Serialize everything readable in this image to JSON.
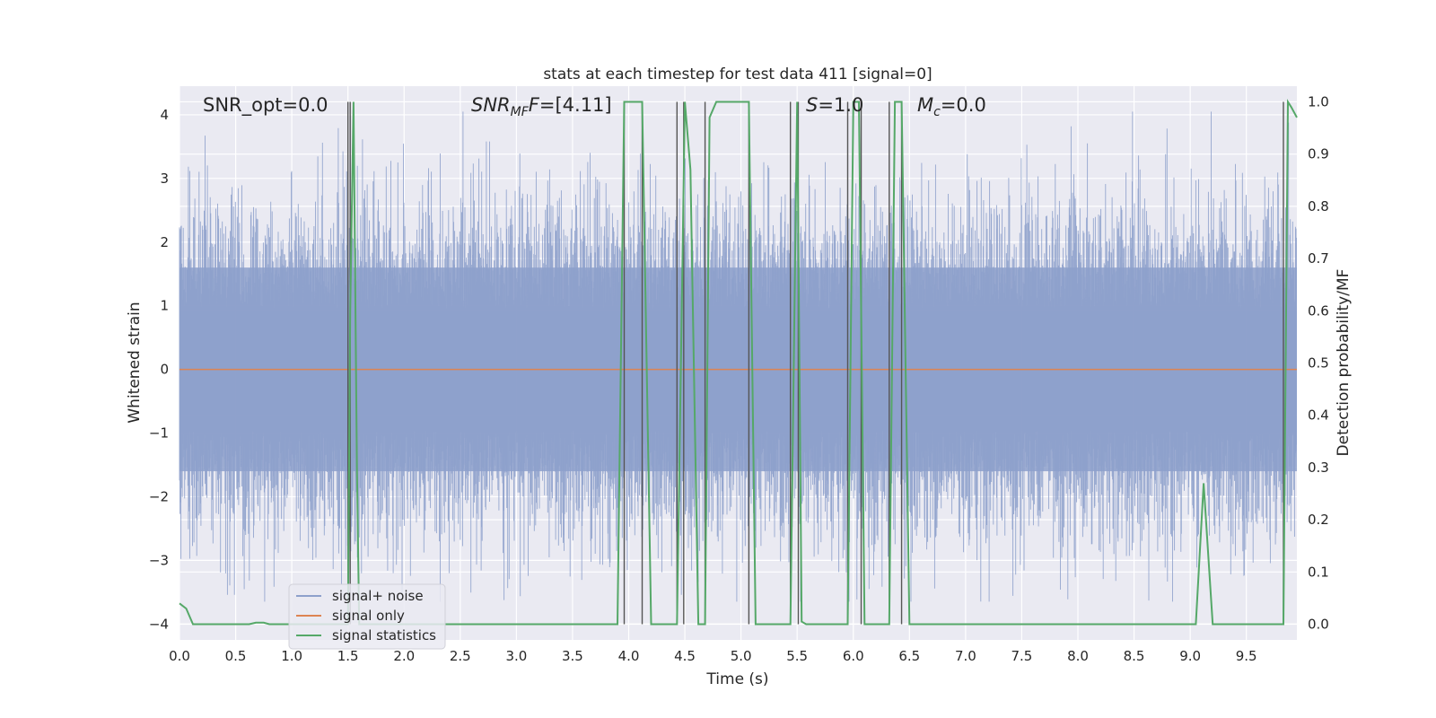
{
  "chart_data": {
    "type": "line",
    "title": "stats at each timestep for test data 411 [signal=0]",
    "xlabel": "Time (s)",
    "ylabel": "Whitened strain",
    "y2label": "Detection probability/MF",
    "xlim": [
      0,
      9.95
    ],
    "ylim": [
      -4.25,
      4.45
    ],
    "y2lim": [
      -0.03,
      1.03
    ],
    "x_ticks": [
      0.0,
      0.5,
      1.0,
      1.5,
      2.0,
      2.5,
      3.0,
      3.5,
      4.0,
      4.5,
      5.0,
      5.5,
      6.0,
      6.5,
      7.0,
      7.5,
      8.0,
      8.5,
      9.0,
      9.5
    ],
    "x_tick_labels": [
      "0.0",
      "0.5",
      "1.0",
      "1.5",
      "2.0",
      "2.5",
      "3.0",
      "3.5",
      "4.0",
      "4.5",
      "5.0",
      "5.5",
      "6.0",
      "6.5",
      "7.0",
      "7.5",
      "8.0",
      "8.5",
      "9.0",
      "9.5"
    ],
    "y_ticks": [
      4,
      3,
      2,
      1,
      0,
      -1,
      -2,
      -3,
      -4
    ],
    "y_tick_labels": [
      "4",
      "3",
      "2",
      "1",
      "0",
      "−1",
      "−2",
      "−3",
      "−4"
    ],
    "y2_ticks": [
      1.0,
      0.9,
      0.8,
      0.7,
      0.6,
      0.5,
      0.4,
      0.3,
      0.2,
      0.1,
      0.0
    ],
    "y2_tick_labels": [
      "1.0",
      "0.9",
      "0.8",
      "0.7",
      "0.6",
      "0.5",
      "0.4",
      "0.3",
      "0.2",
      "0.1",
      "0.0"
    ],
    "grid": true,
    "legend_position": "lower-left",
    "annotations": {
      "snr_opt": "SNR_opt=0.0",
      "snr_mf_base": "SNR",
      "snr_mf_sub": "MF",
      "snr_mf_value": "=[4.11]",
      "s_label": "S",
      "s_value": "=1.0",
      "mc_label": "M",
      "mc_sub": "c",
      "mc_value": "=0.0"
    },
    "noise_envelope": {
      "core_amplitude": 1.6,
      "peak_amplitude": 4.05
    },
    "detection_lines_x": [
      1.5,
      1.52,
      3.96,
      4.12,
      4.43,
      4.49,
      4.68,
      5.07,
      5.44,
      5.51,
      5.95,
      6.07,
      6.32,
      6.43,
      9.83
    ],
    "series": [
      {
        "name": "signal+ noise",
        "color": "#8da0cb",
        "axis": "left",
        "values_note_free": true
      },
      {
        "name": "signal only",
        "color": "#dd8452",
        "axis": "left",
        "x": [
          0.0,
          9.95
        ],
        "y": [
          0.0,
          0.0
        ]
      },
      {
        "name": "signal statistics",
        "color": "#55a868",
        "axis": "right",
        "x": [
          0.0,
          0.06,
          0.12,
          0.2,
          0.5,
          0.62,
          0.68,
          0.75,
          0.8,
          1.5,
          1.52,
          1.55,
          1.58,
          1.6,
          3.9,
          3.96,
          4.0,
          4.12,
          4.2,
          4.28,
          4.43,
          4.5,
          4.55,
          4.62,
          4.68,
          4.72,
          4.78,
          4.95,
          5.07,
          5.13,
          5.44,
          5.5,
          5.54,
          5.58,
          5.65,
          5.95,
          6.0,
          6.05,
          6.1,
          6.32,
          6.37,
          6.43,
          6.5,
          9.05,
          9.12,
          9.2,
          9.83,
          9.87,
          9.9,
          9.95
        ],
        "y": [
          0.04,
          0.03,
          0.0,
          0.0,
          0.0,
          0.0,
          0.003,
          0.003,
          0.0,
          0.0,
          0.6,
          1.0,
          0.3,
          0.0,
          0.0,
          1.0,
          1.0,
          1.0,
          0.0,
          0.0,
          0.0,
          1.0,
          0.87,
          0.0,
          0.0,
          0.97,
          1.0,
          1.0,
          1.0,
          0.0,
          0.0,
          1.0,
          0.005,
          0.0,
          0.0,
          0.0,
          1.0,
          1.0,
          0.0,
          0.0,
          1.0,
          1.0,
          0.0,
          0.0,
          0.27,
          0.0,
          0.0,
          1.0,
          0.99,
          0.97
        ]
      }
    ]
  }
}
